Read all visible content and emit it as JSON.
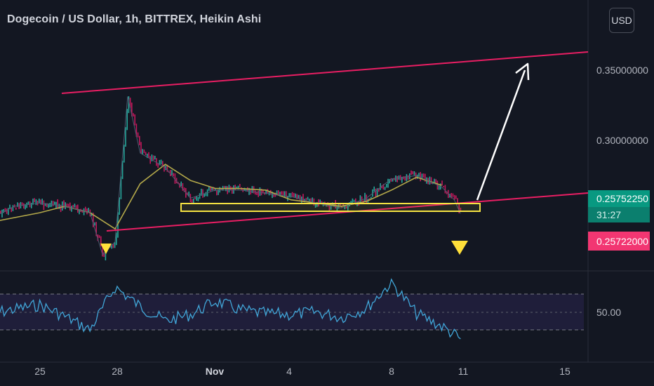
{
  "header": {
    "title": "Dogecoin / US Dollar, 1h, BITTREX, Heikin Ashi",
    "currency_button": "USD"
  },
  "price_axis": {
    "labels": [
      "0.35000000",
      "0.30000000",
      "0.25752250",
      "31:27",
      "0.25722000"
    ],
    "last_price": "0.25752250",
    "countdown": "31:27",
    "bid_price": "0.25722000"
  },
  "time_axis": {
    "labels": [
      "25",
      "28",
      "Nov",
      "4",
      "8",
      "11",
      "15"
    ]
  },
  "rsi_pane": {
    "label": "50.00"
  },
  "colors": {
    "background": "#131722",
    "candle_up": "#26a69a",
    "candle_down": "#c2185b",
    "moving_average": "#b3a84a",
    "channel_line": "#e91e63",
    "support_box": "#f5e342",
    "arrow": "#ffffff",
    "marker": "#ffe03a",
    "rsi_line": "#41a6d8",
    "rsi_band": "#1f1e3a",
    "last_price_tag": "#089981",
    "bid_price_tag": "#f23672"
  },
  "chart_data": {
    "type": "line",
    "title": "Dogecoin / US Dollar, 1h, BITTREX, Heikin Ashi",
    "y_unit": "USD",
    "ylim": [
      0.22,
      0.37
    ],
    "x": [
      "Oct 23",
      "Oct 25",
      "Oct 26",
      "Oct 27",
      "Oct 28",
      "Oct 29",
      "Oct 30",
      "Oct 31",
      "Nov 1",
      "Nov 2",
      "Nov 3",
      "Nov 4",
      "Nov 5",
      "Nov 6",
      "Nov 7",
      "Nov 8",
      "Nov 9",
      "Nov 10",
      "Nov 11",
      "Nov 15"
    ],
    "x_ticks": [
      "25",
      "28",
      "Nov",
      "4",
      "8",
      "11",
      "15"
    ],
    "series": [
      {
        "role": "price",
        "x": [
          "Oct 23",
          "Oct 24",
          "Oct 25",
          "Oct 26",
          "Oct 27",
          "Oct 27 12h",
          "Oct 28",
          "Oct 28 12h",
          "Oct 29",
          "Oct 30",
          "Oct 31",
          "Nov 1",
          "Nov 2",
          "Nov 3",
          "Nov 4",
          "Nov 5",
          "Nov 6",
          "Nov 7",
          "Nov 8",
          "Nov 9",
          "Nov 10",
          "Nov 10 12h",
          "Nov 10 18h"
        ],
        "values": [
          0.254,
          0.262,
          0.264,
          0.262,
          0.258,
          0.232,
          0.24,
          0.33,
          0.295,
          0.286,
          0.267,
          0.272,
          0.272,
          0.27,
          0.268,
          0.264,
          0.261,
          0.267,
          0.279,
          0.281,
          0.274,
          0.266,
          0.2575
        ]
      },
      {
        "role": "moving_average",
        "x": [
          "Oct 23",
          "Oct 25",
          "Oct 26",
          "Oct 27",
          "Oct 28",
          "Oct 29",
          "Oct 30",
          "Oct 31",
          "Nov 1",
          "Nov 2",
          "Nov 3",
          "Nov 4",
          "Nov 5",
          "Nov 6",
          "Nov 7",
          "Nov 8",
          "Nov 9",
          "Nov 10"
        ],
        "values": [
          0.252,
          0.258,
          0.262,
          0.258,
          0.248,
          0.276,
          0.288,
          0.278,
          0.273,
          0.273,
          0.272,
          0.266,
          0.264,
          0.262,
          0.265,
          0.272,
          0.28,
          0.275
        ]
      }
    ],
    "annotations": {
      "channel_upper": [
        [
          "Oct 27",
          0.333
        ],
        [
          "Nov 15",
          0.362
        ]
      ],
      "channel_lower": [
        [
          "Oct 27",
          0.239
        ],
        [
          "Nov 15",
          0.264
        ]
      ],
      "support_zone": {
        "from": "Oct 30",
        "to": "Nov 11",
        "low": 0.257,
        "high": 0.262
      },
      "projection_arrow": [
        [
          "Nov 11",
          0.262
        ],
        [
          "Nov 13",
          0.343
        ]
      ],
      "markers": [
        "Oct 27",
        "Nov 10"
      ]
    },
    "rsi": {
      "ylim": [
        0,
        100
      ],
      "levels": [
        30,
        50,
        70
      ],
      "x": [
        "Oct 23",
        "Oct 24",
        "Oct 25",
        "Oct 26",
        "Oct 27",
        "Oct 28",
        "Oct 29",
        "Oct 30",
        "Oct 31",
        "Nov 1",
        "Nov 2",
        "Nov 3",
        "Nov 4",
        "Nov 5",
        "Nov 6",
        "Nov 7",
        "Nov 8",
        "Nov 9",
        "Nov 10",
        "Nov 10 18h"
      ],
      "values": [
        48,
        53,
        58,
        45,
        30,
        78,
        56,
        40,
        47,
        62,
        52,
        48,
        47,
        50,
        44,
        54,
        83,
        48,
        34,
        20
      ]
    }
  }
}
